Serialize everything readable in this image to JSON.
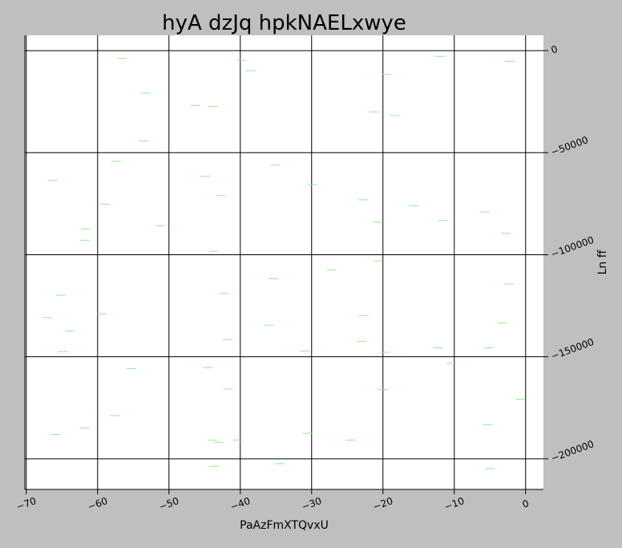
{
  "chart_data": {
    "type": "scatter",
    "title": "hyA dzJq  hpkNAELxwye",
    "xlabel": "PaAzFmXTQvxU",
    "ylabel": "Ln ff",
    "xlim": [
      -70.2,
      2.5
    ],
    "ylim": [
      -215000,
      7500
    ],
    "grid": true,
    "y_axis_side": "right",
    "tick_rotation_degrees": 20,
    "marker": "horizontal dash",
    "colors": {
      "background": "#bfbfbf",
      "plot_area": "#ffffff",
      "grid": "#000000",
      "marker": "#90ee90"
    },
    "x_ticks": [
      {
        "value": -70,
        "label": "−70"
      },
      {
        "value": -60,
        "label": "−60"
      },
      {
        "value": -50,
        "label": "−50"
      },
      {
        "value": -40,
        "label": "−40"
      },
      {
        "value": -30,
        "label": "−30"
      },
      {
        "value": -20,
        "label": "−20"
      },
      {
        "value": -10,
        "label": "−10"
      },
      {
        "value": 0,
        "label": "0"
      }
    ],
    "y_ticks": [
      {
        "value": 0,
        "label": "0"
      },
      {
        "value": -50000,
        "label": "−50000"
      },
      {
        "value": -100000,
        "label": "−100000"
      },
      {
        "value": -150000,
        "label": "−150000"
      },
      {
        "value": -200000,
        "label": "−200000"
      }
    ],
    "points": [
      [
        -56.6,
        -3800
      ],
      [
        -53.3,
        -20800
      ],
      [
        -53.6,
        -44300
      ],
      [
        -46.3,
        -26800
      ],
      [
        -43.8,
        -27300
      ],
      [
        -39.9,
        -4800
      ],
      [
        -38.6,
        -9800
      ],
      [
        -19.6,
        -11600
      ],
      [
        -12.0,
        -2800
      ],
      [
        -2.2,
        -5300
      ],
      [
        -21.3,
        -30100
      ],
      [
        -18.4,
        -31800
      ],
      [
        -66.3,
        -63600
      ],
      [
        -57.4,
        -54300
      ],
      [
        -59.0,
        -75300
      ],
      [
        -61.7,
        -87400
      ],
      [
        -61.8,
        -92900
      ],
      [
        -51.2,
        -85800
      ],
      [
        -44.9,
        -61600
      ],
      [
        -42.8,
        -71000
      ],
      [
        -35.1,
        -56100
      ],
      [
        -29.9,
        -65600
      ],
      [
        -22.8,
        -73100
      ],
      [
        -20.7,
        -84100
      ],
      [
        -15.7,
        -76100
      ],
      [
        -11.6,
        -83200
      ],
      [
        -5.7,
        -79000
      ],
      [
        -2.8,
        -89600
      ],
      [
        -43.7,
        -98300
      ],
      [
        -35.4,
        -111800
      ],
      [
        -27.2,
        -107500
      ],
      [
        -20.7,
        -103000
      ],
      [
        -2.3,
        -114400
      ],
      [
        -65.2,
        -119900
      ],
      [
        -67.1,
        -130800
      ],
      [
        -63.9,
        -137400
      ],
      [
        -64.9,
        -147500
      ],
      [
        -59.4,
        -128900
      ],
      [
        -42.3,
        -119000
      ],
      [
        -41.8,
        -141600
      ],
      [
        -36.0,
        -134500
      ],
      [
        -22.7,
        -129800
      ],
      [
        -23.0,
        -142400
      ],
      [
        -30.9,
        -147200
      ],
      [
        -19.7,
        -147800
      ],
      [
        -12.3,
        -145600
      ],
      [
        -10.4,
        -153200
      ],
      [
        -5.2,
        -145600
      ],
      [
        -3.3,
        -133400
      ],
      [
        -55.3,
        -155800
      ],
      [
        -44.6,
        -155300
      ],
      [
        -41.7,
        -165800
      ],
      [
        -20.0,
        -166100
      ],
      [
        -0.7,
        -170800
      ],
      [
        -57.6,
        -178800
      ],
      [
        -65.9,
        -188100
      ],
      [
        -61.8,
        -184900
      ],
      [
        -43.9,
        -190900
      ],
      [
        -43.0,
        -191900
      ],
      [
        -40.4,
        -190800
      ],
      [
        -30.6,
        -187500
      ],
      [
        -24.6,
        -190800
      ],
      [
        -5.4,
        -183300
      ],
      [
        -43.7,
        -203700
      ],
      [
        -34.5,
        -202400
      ],
      [
        -5.0,
        -204800
      ]
    ]
  }
}
